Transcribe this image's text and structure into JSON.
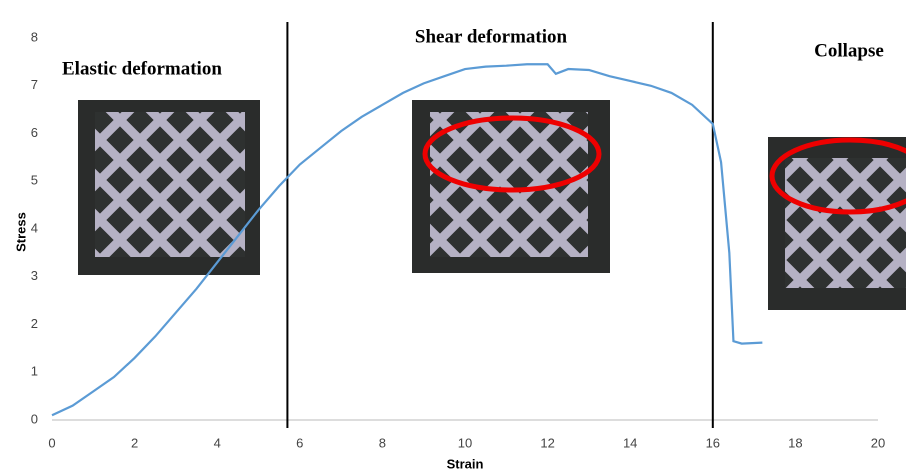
{
  "chart_data": {
    "type": "line",
    "annotations": [
      "Elastic deformation",
      "Shear  deformation",
      "Collapse"
    ],
    "x_label": "Strain",
    "y_label": "Stress",
    "x": [
      0,
      0.5,
      1,
      1.5,
      2,
      2.5,
      3,
      3.5,
      4,
      4.5,
      5,
      5.5,
      6,
      6.5,
      7,
      7.5,
      8,
      8.5,
      9,
      9.5,
      10,
      10.5,
      11,
      11.5,
      12,
      12.2,
      12.5,
      13,
      13.5,
      14,
      14.5,
      15,
      15.5,
      16,
      16.2,
      16.4,
      16.5,
      16.7,
      17.2
    ],
    "values": [
      0.1,
      0.3,
      0.6,
      0.9,
      1.3,
      1.75,
      2.25,
      2.75,
      3.3,
      3.85,
      4.4,
      4.9,
      5.35,
      5.7,
      6.05,
      6.35,
      6.6,
      6.85,
      7.05,
      7.2,
      7.35,
      7.4,
      7.42,
      7.45,
      7.45,
      7.25,
      7.35,
      7.33,
      7.2,
      7.1,
      7.0,
      6.85,
      6.6,
      6.2,
      5.4,
      3.5,
      1.65,
      1.6,
      1.62
    ],
    "color": "#5b9bd5",
    "vlines": [
      5.7,
      16
    ],
    "xlim": [
      0,
      20
    ],
    "xticks": [
      0,
      2,
      4,
      6,
      8,
      10,
      12,
      14,
      16,
      18,
      20
    ],
    "ylim": [
      0,
      8
    ],
    "yticks": [
      0,
      1,
      2,
      3,
      4,
      5,
      6,
      7,
      8
    ]
  }
}
